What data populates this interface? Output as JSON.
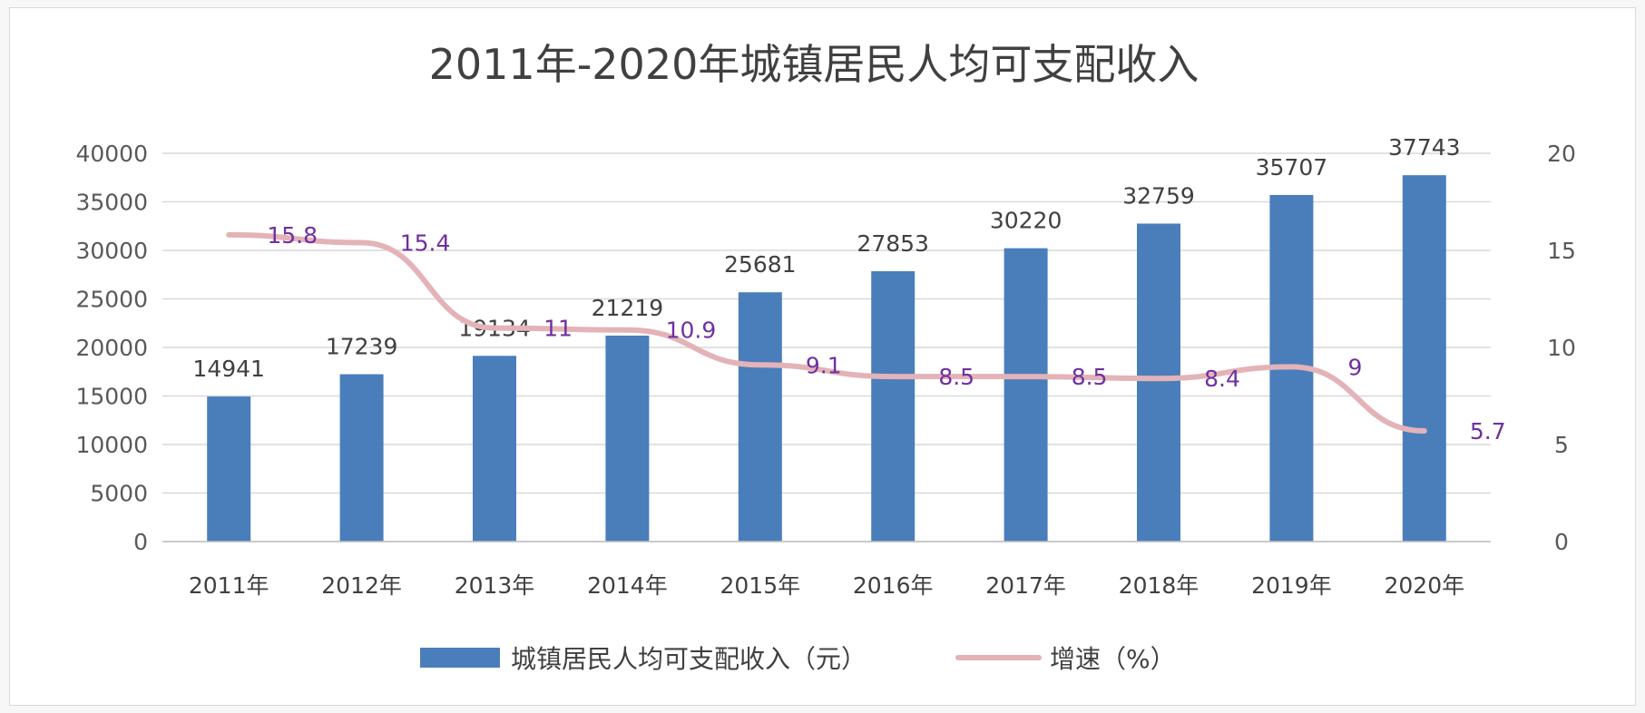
{
  "colors": {
    "bar": "#4a7ebb",
    "line": "#e3b3b8",
    "line_label": "#7030a0",
    "text": "#404040",
    "grid": "#d9d9d9"
  },
  "chart_data": {
    "type": "bar",
    "title": "2011年-2020年城镇居民人均可支配收入",
    "categories": [
      "2011年",
      "2012年",
      "2013年",
      "2014年",
      "2015年",
      "2016年",
      "2017年",
      "2018年",
      "2019年",
      "2020年"
    ],
    "series": [
      {
        "name": "城镇居民人均可支配收入（元）",
        "type": "bar",
        "axis": "left",
        "values": [
          14941,
          17239,
          19134,
          21219,
          25681,
          27853,
          30220,
          32759,
          35707,
          37743
        ],
        "labels": [
          "14941",
          "17239",
          "19134",
          "21219",
          "25681",
          "27853",
          "30220",
          "32759",
          "35707",
          "37743"
        ]
      },
      {
        "name": "增速（%）",
        "type": "line",
        "axis": "right",
        "values": [
          15.8,
          15.4,
          11,
          10.9,
          9.1,
          8.5,
          8.5,
          8.4,
          9,
          5.7
        ],
        "labels": [
          "15.8",
          "15.4",
          "11",
          "10.9",
          "9.1",
          "8.5",
          "8.5",
          "8.4",
          "9",
          "5.7"
        ]
      }
    ],
    "y_left": {
      "ylim": [
        0,
        40000
      ],
      "ticks": [
        "0",
        "5000",
        "10000",
        "15000",
        "20000",
        "25000",
        "30000",
        "35000",
        "40000"
      ]
    },
    "y_right": {
      "ylim": [
        0,
        20
      ],
      "ticks": [
        "0",
        "5",
        "10",
        "15",
        "20"
      ]
    },
    "grid": true,
    "legend_position": "bottom"
  }
}
